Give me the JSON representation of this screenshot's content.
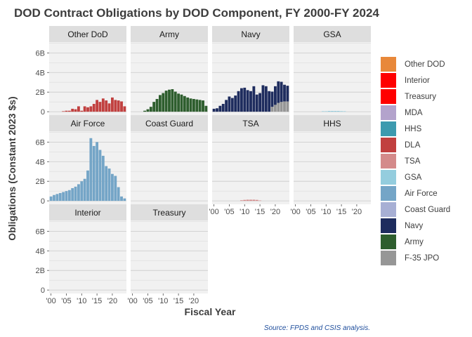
{
  "chart_data": {
    "type": "bar",
    "title": "DOD Contract Obligations by DOD Component, FY 2000-FY 2024",
    "xlabel": "Fiscal Year",
    "ylabel": "Obligations (Constant 2023 $s)",
    "caption": "Source: FPDS and CSIS analysis.",
    "x_tick_labels": [
      "'00",
      "'05",
      "'10",
      "'15",
      "'20"
    ],
    "x_tick_values": [
      2000,
      2005,
      2010,
      2015,
      2020
    ],
    "x_range": [
      1999.4,
      2024.6
    ],
    "y_tick_labels": [
      "0",
      "2B",
      "4B",
      "6B"
    ],
    "y_tick_values": [
      0,
      2,
      4,
      6
    ],
    "y_range": [
      -0.35,
      7.1
    ],
    "y_units": "billions",
    "years": [
      2000,
      2001,
      2002,
      2003,
      2004,
      2005,
      2006,
      2007,
      2008,
      2009,
      2010,
      2011,
      2012,
      2013,
      2014,
      2015,
      2016,
      2017,
      2018,
      2019,
      2020,
      2021,
      2022,
      2023,
      2024
    ],
    "grid": true,
    "legend_position": "right",
    "legend": [
      {
        "label": "Other DOD",
        "color": "#E8883A"
      },
      {
        "label": "Interior",
        "color": "#FF0000"
      },
      {
        "label": "Treasury",
        "color": "#FF0000"
      },
      {
        "label": "MDA",
        "color": "#B3A3CC"
      },
      {
        "label": "HHS",
        "color": "#3D9AAF"
      },
      {
        "label": "DLA",
        "color": "#C1403F"
      },
      {
        "label": "TSA",
        "color": "#D48A8A"
      },
      {
        "label": "GSA",
        "color": "#94CDDE"
      },
      {
        "label": "Air Force",
        "color": "#74A5C7"
      },
      {
        "label": "Coast Guard",
        "color": "#A7AFD4"
      },
      {
        "label": "Navy",
        "color": "#1E2C5E"
      },
      {
        "label": "Army",
        "color": "#2E5E2E"
      },
      {
        "label": "F-35 JPO",
        "color": "#969696"
      }
    ],
    "panels": [
      {
        "name": "Other DoD",
        "series": [
          {
            "name": "Other DOD",
            "color": "#E8883A",
            "values": [
              0,
              0,
              0,
              0,
              0,
              0,
              0,
              0,
              0,
              0,
              0,
              0,
              0,
              0,
              0,
              0,
              0,
              0,
              0,
              0,
              0,
              0,
              0,
              0,
              0
            ]
          },
          {
            "name": "DLA",
            "color": "#C1403F",
            "values": [
              0,
              0,
              0,
              0,
              0.05,
              0.1,
              0.1,
              0.3,
              0.25,
              0.55,
              0.1,
              0.55,
              0.45,
              0.55,
              0.8,
              1.2,
              1.0,
              1.35,
              1.15,
              0.85,
              1.45,
              1.2,
              1.15,
              1.05,
              0.55
            ]
          }
        ]
      },
      {
        "name": "Army",
        "series": [
          {
            "name": "Army",
            "color": "#2E5E2E",
            "values": [
              0,
              0,
              0,
              0,
              0.1,
              0.25,
              0.5,
              1.0,
              1.3,
              1.7,
              1.9,
              2.15,
              2.25,
              2.3,
              2.05,
              1.85,
              1.75,
              1.6,
              1.45,
              1.35,
              1.3,
              1.25,
              1.2,
              1.15,
              0.6
            ]
          }
        ]
      },
      {
        "name": "Navy",
        "series": [
          {
            "name": "F-35 JPO",
            "color": "#969696",
            "values": [
              0,
              0,
              0,
              0,
              0,
              0,
              0,
              0,
              0,
              0,
              0,
              0,
              0,
              0,
              0,
              0,
              0,
              0,
              0,
              0.5,
              0.7,
              0.9,
              1.0,
              1.05,
              1.05
            ]
          },
          {
            "name": "Navy",
            "color": "#1E2C5E",
            "values": [
              0.3,
              0.35,
              0.6,
              0.8,
              1.2,
              1.55,
              1.4,
              1.65,
              2.1,
              2.4,
              2.45,
              2.2,
              2.1,
              2.6,
              1.75,
              1.9,
              2.7,
              2.6,
              2.1,
              1.55,
              1.9,
              2.2,
              2.05,
              1.7,
              1.6
            ]
          }
        ]
      },
      {
        "name": "GSA",
        "series": [
          {
            "name": "GSA",
            "color": "#94CDDE",
            "values": [
              0,
              0,
              0,
              0,
              0,
              0,
              0,
              0,
              0,
              0.05,
              0.05,
              0.08,
              0.08,
              0.08,
              0.08,
              0.06,
              0.05,
              0,
              0,
              0,
              0,
              0,
              0,
              0,
              0
            ]
          }
        ]
      },
      {
        "name": "Air Force",
        "series": [
          {
            "name": "Air Force",
            "color": "#74A5C7",
            "values": [
              0.45,
              0.6,
              0.7,
              0.8,
              0.9,
              1.0,
              1.1,
              1.3,
              1.45,
              1.7,
              2.0,
              2.25,
              3.1,
              6.4,
              5.6,
              6.0,
              5.2,
              4.6,
              3.55,
              3.3,
              2.75,
              2.55,
              1.4,
              0.45,
              0.25
            ]
          }
        ]
      },
      {
        "name": "Coast Guard",
        "series": [
          {
            "name": "Coast Guard",
            "color": "#A7AFD4",
            "values": [
              0,
              0,
              0,
              0,
              0,
              0,
              0,
              0,
              0,
              0,
              0,
              0,
              0,
              0,
              0,
              0,
              0,
              0,
              0,
              0,
              0,
              0,
              0,
              0,
              0
            ]
          }
        ]
      },
      {
        "name": "TSA",
        "series": [
          {
            "name": "TSA",
            "color": "#D48A8A",
            "values": [
              0,
              0,
              0,
              0,
              0,
              0,
              0,
              0,
              0,
              0.06,
              0.1,
              0.12,
              0.12,
              0.12,
              0.1,
              0.04,
              0,
              0,
              0,
              0,
              0,
              0,
              0,
              0,
              0
            ]
          }
        ]
      },
      {
        "name": "HHS",
        "series": [
          {
            "name": "HHS",
            "color": "#3D9AAF",
            "values": [
              0,
              0,
              0,
              0,
              0,
              0,
              0,
              0,
              0,
              0,
              0,
              0,
              0,
              0,
              0,
              0,
              0,
              0,
              0,
              0,
              0,
              0,
              0,
              0,
              0
            ]
          }
        ]
      },
      {
        "name": "Interior",
        "series": [
          {
            "name": "Interior",
            "color": "#FF0000",
            "values": [
              0,
              0,
              0,
              0,
              0,
              0,
              0,
              0,
              0,
              0,
              0,
              0,
              0,
              0,
              0,
              0,
              0,
              0,
              0,
              0,
              0,
              0,
              0,
              0,
              0
            ]
          }
        ]
      },
      {
        "name": "Treasury",
        "series": [
          {
            "name": "Treasury",
            "color": "#FF0000",
            "values": [
              0,
              0,
              0,
              0,
              0,
              0,
              0,
              0,
              0,
              0,
              0,
              0,
              0,
              0,
              0,
              0,
              0,
              0,
              0,
              0,
              0,
              0,
              0,
              0,
              0
            ]
          }
        ]
      }
    ]
  }
}
